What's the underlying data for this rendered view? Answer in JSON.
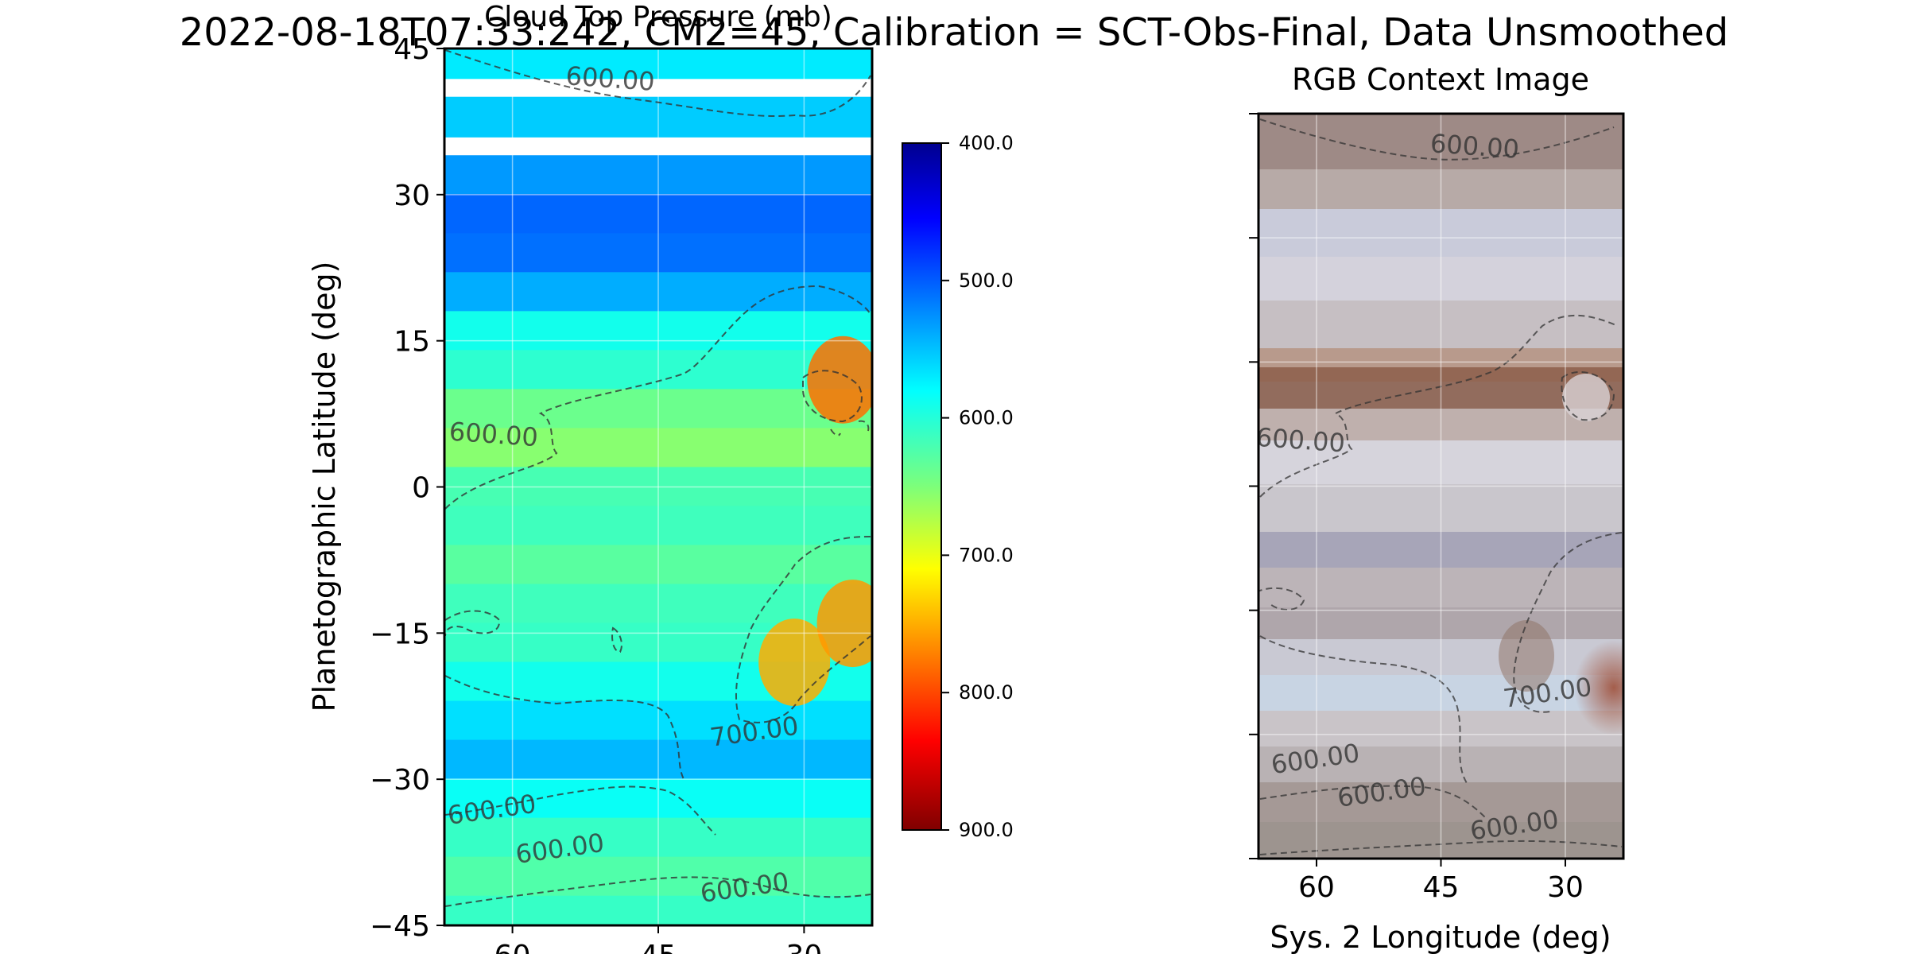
{
  "figure": {
    "suptitle": "2022-08-18T07:33:242, CM2=45, Calibration = SCT-Obs-Final, Data Unsmoothed"
  },
  "chart_data": [
    {
      "type": "heatmap",
      "title": "Cloud Top Pressure (mb)",
      "ylabel": "Planetographic Latitude (deg)",
      "xlabel": "",
      "xlim": [
        67,
        23
      ],
      "ylim": [
        -45,
        45
      ],
      "xticks": [
        60,
        45,
        30
      ],
      "yticks": [
        45,
        30,
        15,
        0,
        -15,
        -30,
        -45
      ],
      "colormap": "jet_r",
      "colorbar": {
        "ticks": [
          "400.0",
          "500.0",
          "600.0",
          "700.0",
          "800.0",
          "900.0"
        ],
        "range": [
          400,
          900
        ]
      },
      "contour_levels": [
        600,
        700
      ],
      "contour_labels": [
        {
          "text": "600.00",
          "lon": 50,
          "lat": 41
        },
        {
          "text": "600.00",
          "lon": 62,
          "lat": 4.5
        },
        {
          "text": "700.00",
          "lon": 35,
          "lat": -26
        },
        {
          "text": "600.00",
          "lon": 62,
          "lat": -34
        },
        {
          "text": "600.00",
          "lon": 55,
          "lat": -38
        },
        {
          "text": "600.00",
          "lon": 36,
          "lat": -42
        }
      ],
      "bands": [
        {
          "lat": 44,
          "value": 570
        },
        {
          "lat": 38,
          "value": 555
        },
        {
          "lat": 32,
          "value": 530
        },
        {
          "lat": 28,
          "value": 505
        },
        {
          "lat": 24,
          "value": 510
        },
        {
          "lat": 20,
          "value": 540
        },
        {
          "lat": 16,
          "value": 590
        },
        {
          "lat": 12,
          "value": 605
        },
        {
          "lat": 8,
          "value": 640
        },
        {
          "lat": 4,
          "value": 655
        },
        {
          "lat": 0,
          "value": 620
        },
        {
          "lat": -4,
          "value": 615
        },
        {
          "lat": -8,
          "value": 630
        },
        {
          "lat": -12,
          "value": 615
        },
        {
          "lat": -16,
          "value": 610
        },
        {
          "lat": -20,
          "value": 590
        },
        {
          "lat": -24,
          "value": 565
        },
        {
          "lat": -28,
          "value": 545
        },
        {
          "lat": -32,
          "value": 585
        },
        {
          "lat": -36,
          "value": 610
        },
        {
          "lat": -40,
          "value": 625
        },
        {
          "lat": -44,
          "value": 610
        }
      ],
      "features": [
        {
          "lon": 26,
          "lat": 11,
          "value": 780
        },
        {
          "lon": 31,
          "lat": -18,
          "value": 750
        },
        {
          "lon": 25,
          "lat": -14,
          "value": 760
        }
      ]
    },
    {
      "type": "heatmap",
      "title": "RGB Context Image",
      "xlabel": "Sys. 2 Longitude (deg)",
      "ylabel": "",
      "xlim": [
        67,
        23
      ],
      "ylim": [
        -45,
        45
      ],
      "xticks": [
        60,
        45,
        30
      ],
      "contour_labels": [
        {
          "text": "600.00",
          "lon": 41,
          "lat": 40
        },
        {
          "text": "600.00",
          "lon": 62,
          "lat": 4.5
        },
        {
          "text": "700.00",
          "lon": 32,
          "lat": -26
        },
        {
          "text": "600.00",
          "lon": 60,
          "lat": -34
        },
        {
          "text": "600.00",
          "lon": 52,
          "lat": -38
        },
        {
          "text": "600.00",
          "lon": 36,
          "lat": -42
        }
      ]
    }
  ]
}
